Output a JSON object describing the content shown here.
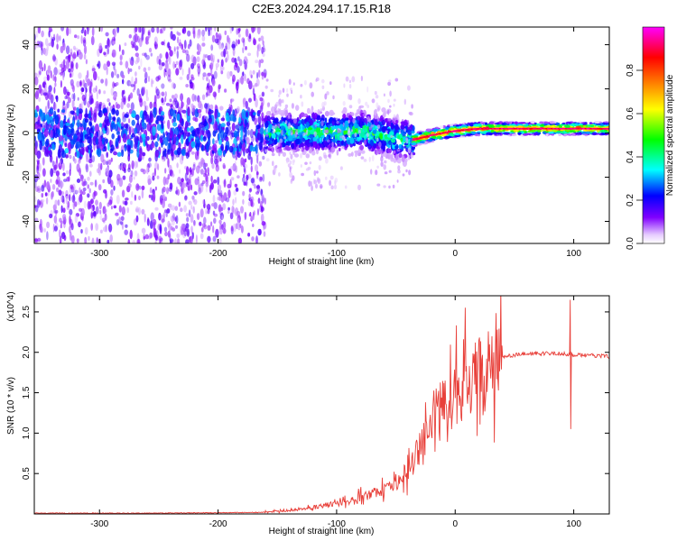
{
  "title": "C2E3.2024.294.17.15.R18",
  "chart_data": [
    {
      "type": "heatmap",
      "xlabel": "Height of straight line (km)",
      "ylabel": "Frequency (Hz)",
      "xlim": [
        -355,
        130
      ],
      "ylim": [
        -50,
        48
      ],
      "x_ticks": [
        -300,
        -200,
        -100,
        0,
        100
      ],
      "x_tick_labels": [
        "-300",
        "-200",
        "-100",
        "0",
        "100"
      ],
      "y_ticks": [
        -40,
        -20,
        0,
        20,
        40
      ],
      "y_tick_labels": [
        "-40",
        "-20",
        "0",
        "20",
        "40"
      ],
      "colorbar": {
        "label": "Normalized spectral amplitude",
        "range": [
          0,
          1
        ],
        "ticks": [
          0.0,
          0.2,
          0.4,
          0.6,
          0.8
        ],
        "tick_labels": [
          "0.0",
          "0.2",
          "0.4",
          "0.6",
          "0.8"
        ],
        "colormap": [
          "#ffffff",
          "#8000ff",
          "#0000ff",
          "#00ffff",
          "#00ff00",
          "#ffff00",
          "#ff8000",
          "#ff0000",
          "#ff00ff"
        ]
      },
      "ridge": {
        "x": [
          -355,
          -300,
          -250,
          -200,
          -170,
          -150,
          -120,
          -100,
          -80,
          -60,
          -45,
          -35,
          -20,
          0,
          20,
          50,
          80,
          100,
          130
        ],
        "y": [
          0,
          0,
          0,
          0,
          0,
          0,
          1,
          0,
          1,
          -1,
          -3,
          -3,
          -1,
          1,
          2,
          2,
          2,
          2,
          2
        ]
      },
      "regions": [
        {
          "name": "scattered",
          "x_range": [
            -355,
            -160
          ],
          "freq_spread": [
            -50,
            48
          ],
          "amplitude": 0.15
        },
        {
          "name": "transition",
          "x_range": [
            -160,
            -35
          ],
          "freq_spread": [
            -12,
            12
          ],
          "amplitude": 0.45
        },
        {
          "name": "steady",
          "x_range": [
            -35,
            130
          ],
          "freq_spread": [
            -3,
            3
          ],
          "amplitude": 0.95
        }
      ]
    },
    {
      "type": "line",
      "xlabel": "Height of straight line (km)",
      "ylabel": "SNR (10 * v/v)",
      "y_multiplier": "(x10^4)",
      "xlim": [
        -355,
        130
      ],
      "ylim": [
        0,
        2.7
      ],
      "x_ticks": [
        -300,
        -200,
        -100,
        0,
        100
      ],
      "x_tick_labels": [
        "-300",
        "-200",
        "-100",
        "0",
        "100"
      ],
      "y_ticks": [
        0.5,
        1.0,
        1.5,
        2.0,
        2.5
      ],
      "y_tick_labels": [
        "0.5",
        "1.0",
        "1.5",
        "2.0",
        "2.5"
      ],
      "color": "#e8403a",
      "series": [
        {
          "x": [
            -355,
            -300,
            -250,
            -200,
            -160,
            -140,
            -120,
            -100,
            -90,
            -80,
            -70,
            -60,
            -50,
            -40,
            -30,
            -20,
            -10,
            0,
            10,
            20,
            30,
            40,
            60,
            80,
            95,
            100,
            110,
            120,
            130
          ],
          "y": [
            0.01,
            0.01,
            0.01,
            0.015,
            0.02,
            0.04,
            0.08,
            0.12,
            0.15,
            0.2,
            0.25,
            0.3,
            0.35,
            0.5,
            0.8,
            1.1,
            1.3,
            1.4,
            1.6,
            1.75,
            1.85,
            1.95,
            1.98,
            1.99,
            1.98,
            1.97,
            1.96,
            1.96,
            1.95
          ]
        }
      ],
      "notable_points": [
        {
          "x": 97,
          "y": 2.65
        },
        {
          "x": 97,
          "y": 1.05
        }
      ]
    }
  ]
}
